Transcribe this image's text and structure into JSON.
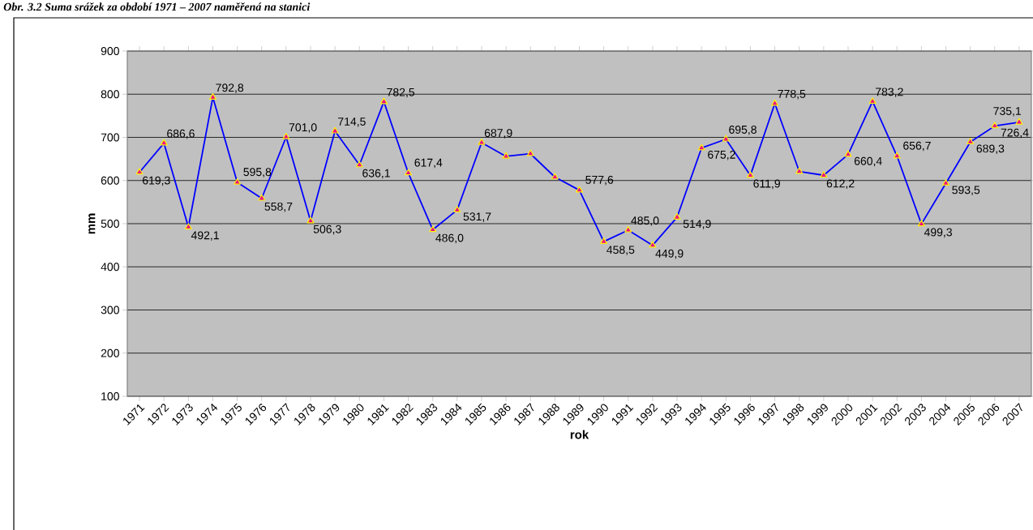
{
  "chart_data": {
    "type": "line",
    "title": "Obr. 3.2 Suma srážek za období 1971 – 2007 naměřená na stanici",
    "xlabel": "rok",
    "ylabel": "mm",
    "categories": [
      "1971",
      "1972",
      "1973",
      "1974",
      "1975",
      "1976",
      "1977",
      "1978",
      "1979",
      "1980",
      "1981",
      "1982",
      "1983",
      "1984",
      "1985",
      "1986",
      "1987",
      "1988",
      "1989",
      "1990",
      "1991",
      "1992",
      "1993",
      "1994",
      "1995",
      "1996",
      "1997",
      "1998",
      "1999",
      "2000",
      "2001",
      "2002",
      "2003",
      "2004",
      "2005",
      "2006",
      "2007"
    ],
    "series": [
      {
        "color": "#0000ff",
        "values": [
          619.3,
          686.6,
          492.1,
          792.8,
          595.8,
          558.7,
          701.0,
          506.3,
          714.5,
          636.1,
          782.5,
          617.4,
          486.0,
          531.7,
          687.9,
          656,
          662,
          608,
          577.6,
          458.5,
          485.0,
          449.9,
          514.9,
          675.2,
          695.8,
          611.9,
          778.5,
          621,
          612.2,
          660.4,
          783.2,
          656.7,
          499.3,
          593.5,
          689.3,
          726.4,
          735.1
        ],
        "value_labels": [
          "619,3",
          "686,6",
          "492,1",
          "792,8",
          "595,8",
          "558,7",
          "701,0",
          "506,3",
          "714,5",
          "636,1",
          "782,5",
          "617,4",
          "486,0",
          "531,7",
          "687,9",
          null,
          null,
          null,
          "577,6",
          "458,5",
          "485,0",
          "449,9",
          "514,9",
          "675,2",
          "695,8",
          "611,9",
          "778,5",
          null,
          "612,2",
          "660,4",
          "783,2",
          "656,7",
          "499,3",
          "593,5",
          "689,3",
          "726,4",
          "735,1"
        ]
      }
    ],
    "ylim": [
      100,
      900
    ],
    "yticks": [
      100,
      200,
      300,
      400,
      500,
      600,
      700,
      800,
      900
    ],
    "grid": "y",
    "marker": "triangle",
    "line_style": "solid"
  }
}
